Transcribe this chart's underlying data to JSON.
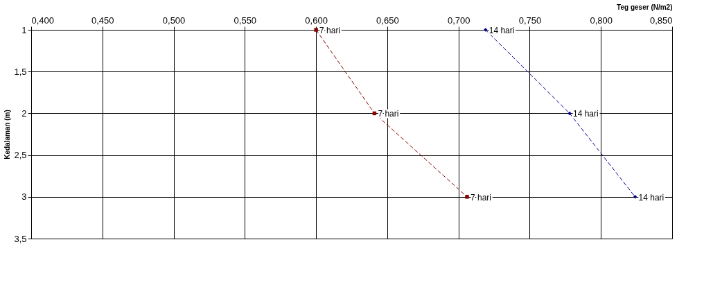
{
  "chart_data": {
    "type": "line",
    "xlabel": "Teg geser (N/m2)",
    "ylabel": "Kedalaman (m)",
    "series": [
      {
        "name": "7 hari",
        "color": "#8b0000",
        "marker": "square",
        "line_style": "dashed",
        "x": [
          0.6,
          0.641,
          0.706
        ],
        "values": [
          1,
          2,
          3
        ]
      },
      {
        "name": "14 hari",
        "color": "#00008b",
        "marker": "diamond",
        "line_style": "dashed",
        "x": [
          0.719,
          0.778,
          0.824
        ],
        "values": [
          1,
          2,
          3
        ]
      }
    ],
    "xlim": [
      0.4,
      0.85
    ],
    "ylim": [
      3.5,
      1
    ],
    "xticks": [
      {
        "value": 0.4,
        "label": "0,400"
      },
      {
        "value": 0.45,
        "label": "0,450"
      },
      {
        "value": 0.5,
        "label": "0,500"
      },
      {
        "value": 0.55,
        "label": "0,550"
      },
      {
        "value": 0.6,
        "label": "0,600"
      },
      {
        "value": 0.65,
        "label": "0,650"
      },
      {
        "value": 0.7,
        "label": "0,700"
      },
      {
        "value": 0.75,
        "label": "0,750"
      },
      {
        "value": 0.8,
        "label": "0,800"
      },
      {
        "value": 0.85,
        "label": "0,850"
      }
    ],
    "yticks": [
      1,
      {
        "value": 1.5,
        "label": "1,5"
      },
      2,
      {
        "value": 2.5,
        "label": "2,5"
      },
      3,
      {
        "value": 3.5,
        "label": "3,5"
      }
    ],
    "grid": true
  }
}
